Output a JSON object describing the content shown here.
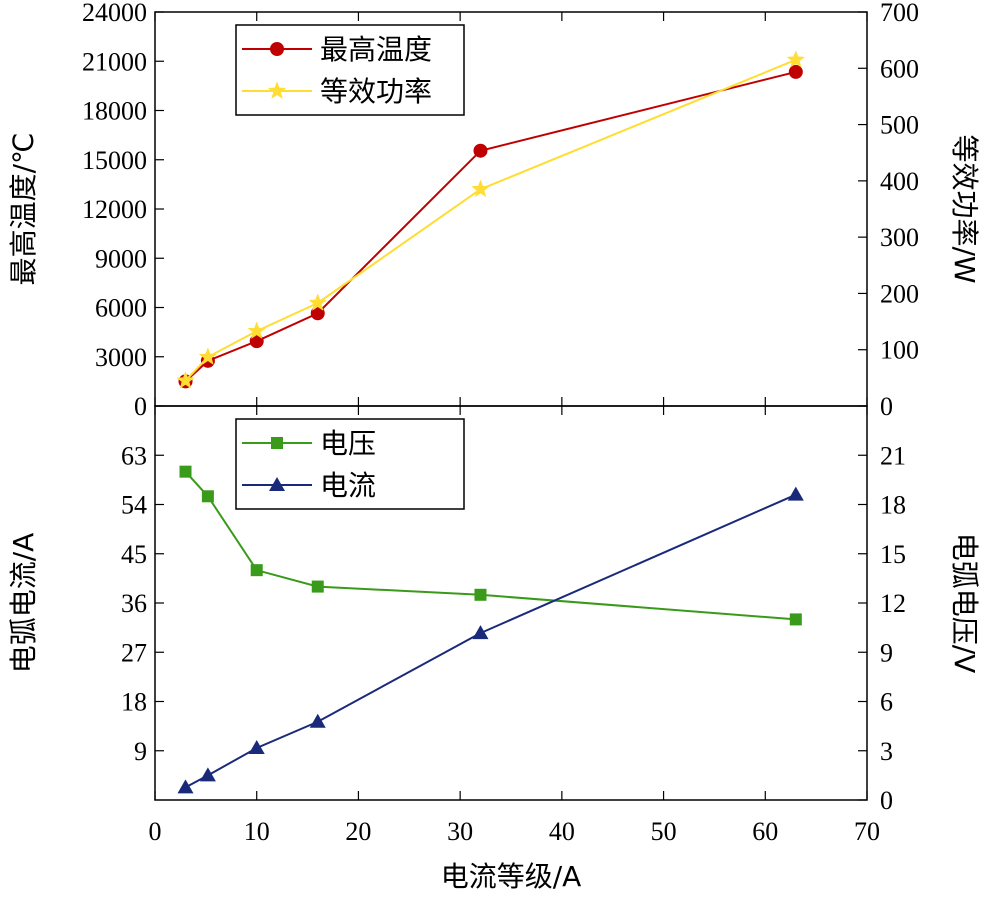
{
  "chart_data": [
    {
      "type": "line",
      "panel": "top",
      "x": [
        3,
        5.2,
        10,
        16,
        32,
        63
      ],
      "xlim": [
        0,
        70
      ],
      "left_axis": {
        "label": "最高温度/℃",
        "lim": [
          0,
          24000
        ],
        "ticks": [
          0,
          3000,
          6000,
          9000,
          12000,
          15000,
          18000,
          21000,
          24000
        ]
      },
      "right_axis": {
        "label": "等效功率/W",
        "lim": [
          0,
          700
        ],
        "ticks": [
          0,
          100,
          200,
          300,
          400,
          500,
          600,
          700
        ]
      },
      "series": [
        {
          "name": "最高温度",
          "axis": "left",
          "color": "#c00000",
          "marker": "circle",
          "values": [
            1500,
            2750,
            3950,
            5650,
            15550,
            20350
          ]
        },
        {
          "name": "等效功率",
          "axis": "right",
          "color": "#ffdd33",
          "marker": "star",
          "values": [
            45,
            87,
            133,
            183,
            385,
            615
          ]
        }
      ],
      "legend": "top-left"
    },
    {
      "type": "line",
      "panel": "bottom",
      "x": [
        3,
        5.2,
        10,
        16,
        32,
        63
      ],
      "xlim": [
        0,
        70
      ],
      "xticks": [
        0,
        10,
        20,
        30,
        40,
        50,
        60,
        70
      ],
      "xlabel": "电流等级/A",
      "left_axis": {
        "label": "电弧电流/A",
        "lim": [
          0,
          72
        ],
        "ticks": [
          9,
          18,
          27,
          36,
          45,
          54,
          63
        ]
      },
      "right_axis": {
        "label": "电弧电压/V",
        "lim": [
          0,
          24
        ],
        "ticks": [
          0,
          3,
          6,
          9,
          12,
          15,
          18,
          21
        ]
      },
      "series": [
        {
          "name": "电压",
          "axis": "right",
          "color": "#3a9a1a",
          "marker": "square",
          "values": [
            20,
            18.5,
            14,
            13,
            12.5,
            11
          ]
        },
        {
          "name": "电流",
          "axis": "left",
          "color": "#1a2a7a",
          "marker": "triangle",
          "values": [
            2.3,
            4.5,
            9.5,
            14.3,
            30.5,
            55.8
          ]
        }
      ],
      "legend": "top-left"
    }
  ]
}
